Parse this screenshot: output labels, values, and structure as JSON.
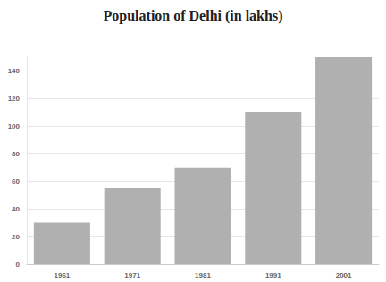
{
  "chart_data": {
    "type": "bar",
    "title": "Population of Delhi (in lakhs)",
    "categories": [
      "1961",
      "1971",
      "1981",
      "1991",
      "2001"
    ],
    "values": [
      30,
      55,
      70,
      110,
      150
    ],
    "color": "#b0b0b0",
    "ylim": [
      0,
      150
    ],
    "yticks": [
      0,
      20,
      40,
      60,
      80,
      100,
      120,
      140
    ],
    "grid": true
  }
}
